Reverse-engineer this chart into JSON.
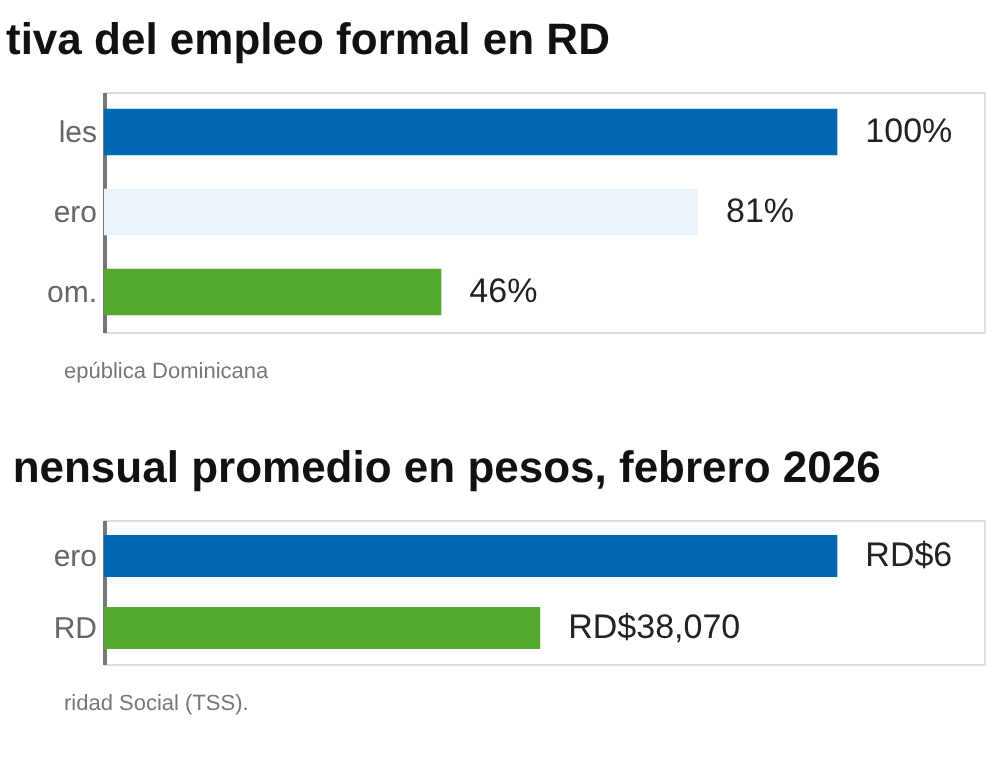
{
  "chart_data": [
    {
      "type": "bar",
      "orientation": "horizontal",
      "title": "tiva del empleo formal en RD",
      "categories": [
        "les",
        "ero",
        "om."
      ],
      "values": [
        100,
        81,
        46
      ],
      "colors": [
        "#0067b1",
        "#edf3fa",
        "#54a92e"
      ],
      "value_labels": [
        "100%",
        "81%",
        "46%"
      ],
      "annotations": [
        "epública Dominicana"
      ],
      "tick_labels": "y"
    },
    {
      "type": "bar",
      "orientation": "horizontal",
      "title": "nensual promedio en pesos, febrero 2026",
      "categories": [
        "ero",
        "RD"
      ],
      "values": [
        64000,
        38070
      ],
      "colors": [
        "#0067b1",
        "#54a92e"
      ],
      "value_labels": [
        "RD$6",
        "RD$38,070"
      ],
      "annotations": [
        "ridad Social (TSS)."
      ],
      "tick_labels": "y"
    }
  ]
}
